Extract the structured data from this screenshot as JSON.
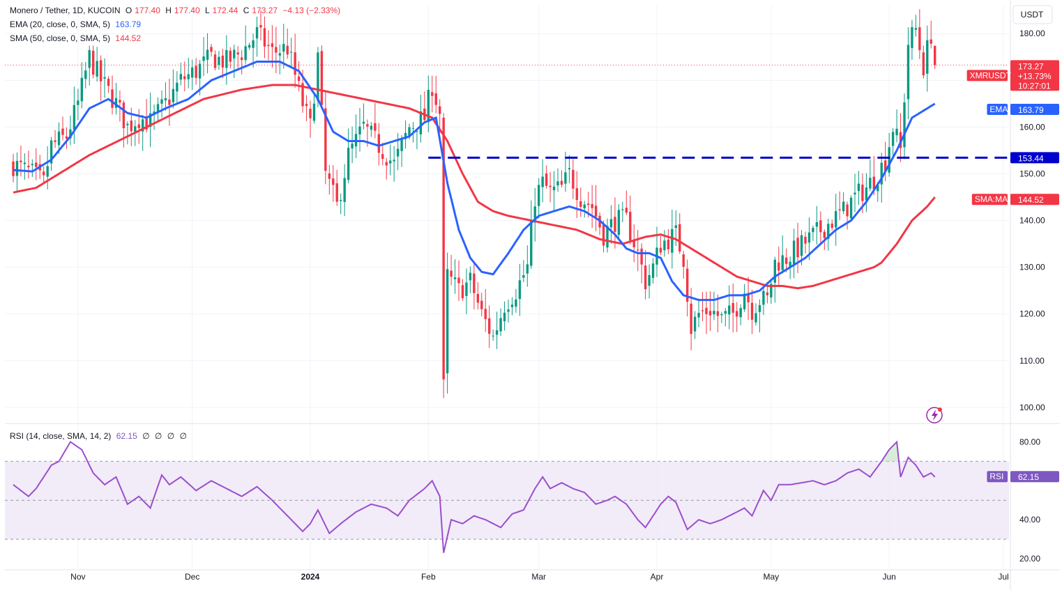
{
  "header": {
    "symbol_line": "Monero / Tether, 1D, KUCOIN",
    "open_label": "O",
    "open": "177.40",
    "high_label": "H",
    "high": "177.40",
    "low_label": "L",
    "low": "172.44",
    "close_label": "C",
    "close": "173.27",
    "change": "−4.13 (−2.33%)",
    "ema_label": "EMA (20, close, 0, SMA, 5)",
    "ema_value": "163.79",
    "sma_label": "SMA (50, close, 0, SMA, 5)",
    "sma_value": "144.52",
    "rsi_label": "RSI (14, close, SMA, 14, 2)",
    "rsi_value": "62.15",
    "rsi_extra": [
      "∅",
      "∅",
      "∅",
      "∅"
    ]
  },
  "axis_currency": "USDT",
  "tags": {
    "price": {
      "label": "XMRUSDT",
      "value": "173.27",
      "pct": "+13.73%",
      "time": "10:27:01"
    },
    "ema": {
      "label": "EMA",
      "value": "163.79"
    },
    "level": {
      "value": "153.44"
    },
    "sma": {
      "label": "SMA:MA",
      "value": "144.52"
    },
    "rsi": {
      "label": "RSI",
      "value": "62.15"
    }
  },
  "colors": {
    "up": "#089981",
    "down": "#f23645",
    "ema": "#2962ff",
    "sma": "#f23645",
    "rsi": "#9c4dcc",
    "level": "#0000cc",
    "grid": "#f0f3fa",
    "band": "#ede7f6"
  },
  "chart_data": {
    "type": "candlestick",
    "y_ticks": [
      "180.00",
      "170.00",
      "160.00",
      "150.00",
      "140.00",
      "130.00",
      "120.00",
      "110.00",
      "100.00"
    ],
    "y_tick_values": [
      180,
      170,
      160,
      150,
      140,
      130,
      120,
      110,
      100
    ],
    "price_range": [
      97,
      186
    ],
    "x_labels": [
      "Nov",
      "Dec",
      "2024",
      "Feb",
      "Mar",
      "Apr",
      "May",
      "Jun",
      "Jul"
    ],
    "x_label_days": [
      17,
      47,
      78,
      109,
      138,
      169,
      199,
      230,
      260
    ],
    "total_days": 260,
    "horizontal_level": 153.44,
    "close_keypoints": [
      [
        0,
        152
      ],
      [
        5,
        150
      ],
      [
        8,
        148
      ],
      [
        10,
        156
      ],
      [
        14,
        158
      ],
      [
        17,
        165
      ],
      [
        20,
        175
      ],
      [
        23,
        170
      ],
      [
        27,
        165
      ],
      [
        30,
        160
      ],
      [
        33,
        162
      ],
      [
        36,
        161
      ],
      [
        40,
        165
      ],
      [
        44,
        170
      ],
      [
        48,
        172
      ],
      [
        52,
        175
      ],
      [
        56,
        174
      ],
      [
        60,
        176
      ],
      [
        64,
        180
      ],
      [
        68,
        176
      ],
      [
        72,
        177
      ],
      [
        76,
        165
      ],
      [
        78,
        160
      ],
      [
        80,
        175
      ],
      [
        82,
        150
      ],
      [
        85,
        143
      ],
      [
        88,
        154
      ],
      [
        92,
        160
      ],
      [
        96,
        156
      ],
      [
        100,
        152
      ],
      [
        104,
        160
      ],
      [
        108,
        162
      ],
      [
        110,
        169
      ],
      [
        112,
        163
      ],
      [
        113,
        105
      ],
      [
        114,
        128
      ],
      [
        117,
        125
      ],
      [
        120,
        127
      ],
      [
        123,
        120
      ],
      [
        126,
        115
      ],
      [
        129,
        122
      ],
      [
        132,
        125
      ],
      [
        135,
        130
      ],
      [
        137,
        145
      ],
      [
        139,
        148
      ],
      [
        141,
        146
      ],
      [
        144,
        147
      ],
      [
        146,
        150
      ],
      [
        149,
        145
      ],
      [
        152,
        143
      ],
      [
        155,
        137
      ],
      [
        158,
        140
      ],
      [
        161,
        140
      ],
      [
        164,
        133
      ],
      [
        166,
        127
      ],
      [
        168,
        130
      ],
      [
        170,
        135
      ],
      [
        172,
        136
      ],
      [
        174,
        137
      ],
      [
        176,
        132
      ],
      [
        178,
        117
      ],
      [
        180,
        120
      ],
      [
        183,
        121
      ],
      [
        186,
        119
      ],
      [
        189,
        120
      ],
      [
        192,
        125
      ],
      [
        194,
        121
      ],
      [
        196,
        123
      ],
      [
        198,
        123
      ],
      [
        200,
        131
      ],
      [
        203,
        132
      ],
      [
        206,
        134
      ],
      [
        209,
        136
      ],
      [
        212,
        138
      ],
      [
        215,
        140
      ],
      [
        218,
        142
      ],
      [
        221,
        145
      ],
      [
        224,
        147
      ],
      [
        227,
        150
      ],
      [
        229,
        153
      ],
      [
        231,
        160
      ],
      [
        233,
        155
      ],
      [
        235,
        178
      ],
      [
        237,
        181
      ],
      [
        239,
        173
      ],
      [
        241,
        180
      ],
      [
        242,
        173
      ]
    ],
    "ema_keypoints": [
      [
        0,
        150.8
      ],
      [
        5,
        150.5
      ],
      [
        10,
        153
      ],
      [
        15,
        158
      ],
      [
        20,
        164
      ],
      [
        25,
        166
      ],
      [
        30,
        163
      ],
      [
        35,
        162
      ],
      [
        40,
        164
      ],
      [
        46,
        166
      ],
      [
        52,
        170
      ],
      [
        58,
        172
      ],
      [
        64,
        174
      ],
      [
        70,
        174
      ],
      [
        75,
        172
      ],
      [
        80,
        166
      ],
      [
        84,
        159
      ],
      [
        88,
        157
      ],
      [
        92,
        157
      ],
      [
        96,
        156
      ],
      [
        100,
        157
      ],
      [
        104,
        158
      ],
      [
        108,
        161
      ],
      [
        111,
        162
      ],
      [
        114,
        148
      ],
      [
        117,
        138
      ],
      [
        120,
        132
      ],
      [
        123,
        129
      ],
      [
        126,
        128.5
      ],
      [
        130,
        133
      ],
      [
        134,
        138
      ],
      [
        138,
        141
      ],
      [
        142,
        142
      ],
      [
        146,
        143
      ],
      [
        150,
        142
      ],
      [
        154,
        140
      ],
      [
        158,
        137
      ],
      [
        161,
        134
      ],
      [
        164,
        133
      ],
      [
        167,
        133
      ],
      [
        170,
        132
      ],
      [
        173,
        127
      ],
      [
        176,
        124
      ],
      [
        180,
        123
      ],
      [
        184,
        123
      ],
      [
        188,
        124
      ],
      [
        192,
        124
      ],
      [
        196,
        125
      ],
      [
        200,
        128
      ],
      [
        204,
        130
      ],
      [
        208,
        132
      ],
      [
        212,
        135
      ],
      [
        216,
        138
      ],
      [
        220,
        140
      ],
      [
        224,
        144
      ],
      [
        228,
        149
      ],
      [
        232,
        155
      ],
      [
        236,
        162
      ],
      [
        240,
        164
      ],
      [
        242,
        165
      ]
    ],
    "sma_keypoints": [
      [
        0,
        146
      ],
      [
        6,
        147
      ],
      [
        12,
        150
      ],
      [
        20,
        154
      ],
      [
        30,
        158
      ],
      [
        40,
        162
      ],
      [
        50,
        166
      ],
      [
        60,
        168
      ],
      [
        68,
        169
      ],
      [
        74,
        169
      ],
      [
        80,
        168
      ],
      [
        86,
        167
      ],
      [
        92,
        166
      ],
      [
        98,
        165
      ],
      [
        104,
        164
      ],
      [
        110,
        162
      ],
      [
        114,
        157
      ],
      [
        118,
        150
      ],
      [
        122,
        144
      ],
      [
        126,
        142
      ],
      [
        130,
        141
      ],
      [
        136,
        140
      ],
      [
        142,
        139
      ],
      [
        148,
        138
      ],
      [
        154,
        136
      ],
      [
        160,
        135
      ],
      [
        166,
        136.5
      ],
      [
        170,
        137
      ],
      [
        174,
        136
      ],
      [
        178,
        134
      ],
      [
        182,
        132
      ],
      [
        186,
        130
      ],
      [
        190,
        128
      ],
      [
        194,
        127
      ],
      [
        198,
        126
      ],
      [
        202,
        126
      ],
      [
        206,
        125.5
      ],
      [
        210,
        126
      ],
      [
        214,
        127
      ],
      [
        218,
        128
      ],
      [
        222,
        129
      ],
      [
        226,
        130
      ],
      [
        228,
        131
      ],
      [
        232,
        135
      ],
      [
        236,
        140
      ],
      [
        240,
        143
      ],
      [
        242,
        145
      ]
    ],
    "rsi_range": [
      15,
      88
    ],
    "rsi_ticks": [
      "80.00",
      "40.00",
      "20.00"
    ],
    "rsi_tick_values": [
      80,
      40,
      20
    ],
    "rsi_band": [
      30,
      70
    ],
    "rsi_mid": 50,
    "rsi_keypoints": [
      [
        0,
        58
      ],
      [
        4,
        52
      ],
      [
        6,
        56
      ],
      [
        10,
        68
      ],
      [
        12,
        70
      ],
      [
        15,
        80
      ],
      [
        18,
        76
      ],
      [
        21,
        64
      ],
      [
        24,
        58
      ],
      [
        27,
        62
      ],
      [
        30,
        48
      ],
      [
        33,
        52
      ],
      [
        36,
        46
      ],
      [
        39,
        63
      ],
      [
        41,
        58
      ],
      [
        44,
        62
      ],
      [
        48,
        55
      ],
      [
        52,
        60
      ],
      [
        56,
        56
      ],
      [
        60,
        52
      ],
      [
        64,
        57
      ],
      [
        68,
        50
      ],
      [
        72,
        42
      ],
      [
        76,
        34
      ],
      [
        78,
        38
      ],
      [
        80,
        45
      ],
      [
        83,
        33
      ],
      [
        86,
        38
      ],
      [
        90,
        44
      ],
      [
        94,
        48
      ],
      [
        98,
        46
      ],
      [
        101,
        42
      ],
      [
        104,
        50
      ],
      [
        108,
        56
      ],
      [
        110,
        60
      ],
      [
        112,
        52
      ],
      [
        113,
        23
      ],
      [
        115,
        40
      ],
      [
        118,
        38
      ],
      [
        121,
        42
      ],
      [
        124,
        40
      ],
      [
        128,
        36
      ],
      [
        131,
        43
      ],
      [
        134,
        45
      ],
      [
        137,
        56
      ],
      [
        139,
        62
      ],
      [
        141,
        56
      ],
      [
        144,
        59
      ],
      [
        147,
        56
      ],
      [
        150,
        54
      ],
      [
        153,
        48
      ],
      [
        156,
        50
      ],
      [
        158,
        52
      ],
      [
        161,
        48
      ],
      [
        164,
        40
      ],
      [
        166,
        36
      ],
      [
        168,
        42
      ],
      [
        170,
        48
      ],
      [
        172,
        52
      ],
      [
        174,
        49
      ],
      [
        177,
        35
      ],
      [
        180,
        40
      ],
      [
        183,
        38
      ],
      [
        186,
        40
      ],
      [
        189,
        43
      ],
      [
        192,
        46
      ],
      [
        194,
        42
      ],
      [
        197,
        55
      ],
      [
        199,
        50
      ],
      [
        201,
        58
      ],
      [
        204,
        58
      ],
      [
        207,
        59
      ],
      [
        210,
        60
      ],
      [
        213,
        58
      ],
      [
        216,
        60
      ],
      [
        219,
        64
      ],
      [
        222,
        66
      ],
      [
        225,
        62
      ],
      [
        228,
        70
      ],
      [
        230,
        76
      ],
      [
        232,
        80
      ],
      [
        233,
        62
      ],
      [
        235,
        72
      ],
      [
        237,
        68
      ],
      [
        239,
        62
      ],
      [
        241,
        64
      ],
      [
        242,
        62
      ]
    ]
  }
}
